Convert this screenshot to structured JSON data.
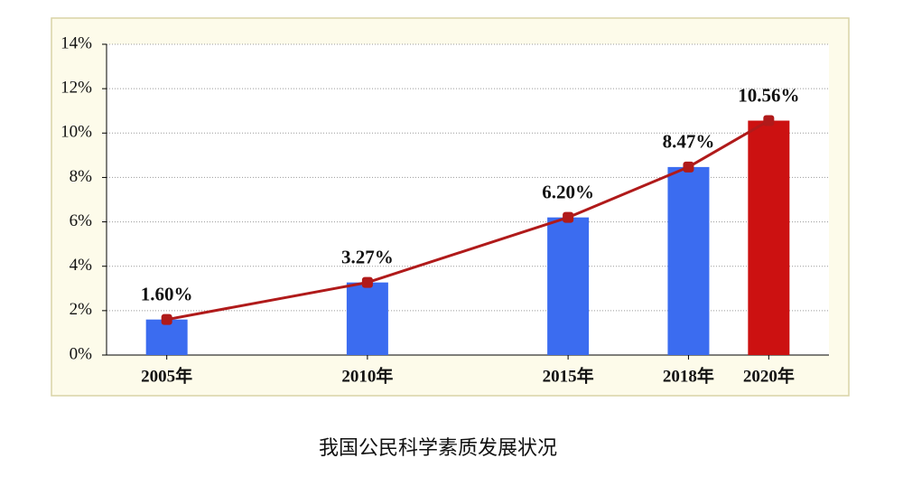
{
  "chart_data": {
    "type": "bar",
    "title": "我国公民科学素质发展状况",
    "x": [
      2005,
      2010,
      2015,
      2018,
      2020
    ],
    "values": [
      1.6,
      3.27,
      6.2,
      8.47,
      10.56
    ],
    "value_labels": [
      "1.60%",
      "3.27%",
      "6.20%",
      "8.47%",
      "10.56%"
    ],
    "colors": [
      "#3b6cf0",
      "#3b6cf0",
      "#3b6cf0",
      "#3b6cf0",
      "#cc1111"
    ],
    "line": true,
    "line_color": "#b01a1a",
    "xlim": [
      2003.5,
      2021.5
    ],
    "xticks": [
      {
        "value": 2005,
        "label": "2005年"
      },
      {
        "value": 2010,
        "label": "2010年"
      },
      {
        "value": 2015,
        "label": "2015年"
      },
      {
        "value": 2018,
        "label": "2018年"
      },
      {
        "value": 2020,
        "label": "2020年"
      }
    ],
    "ylim": [
      0,
      14
    ],
    "yticks": [
      {
        "value": 0,
        "label": "0%"
      },
      {
        "value": 2,
        "label": "2%"
      },
      {
        "value": 4,
        "label": "4%"
      },
      {
        "value": 6,
        "label": "6%"
      },
      {
        "value": 8,
        "label": "8%"
      },
      {
        "value": 10,
        "label": "10%"
      },
      {
        "value": 12,
        "label": "12%"
      },
      {
        "value": 14,
        "label": "14%"
      }
    ],
    "grid": true
  }
}
